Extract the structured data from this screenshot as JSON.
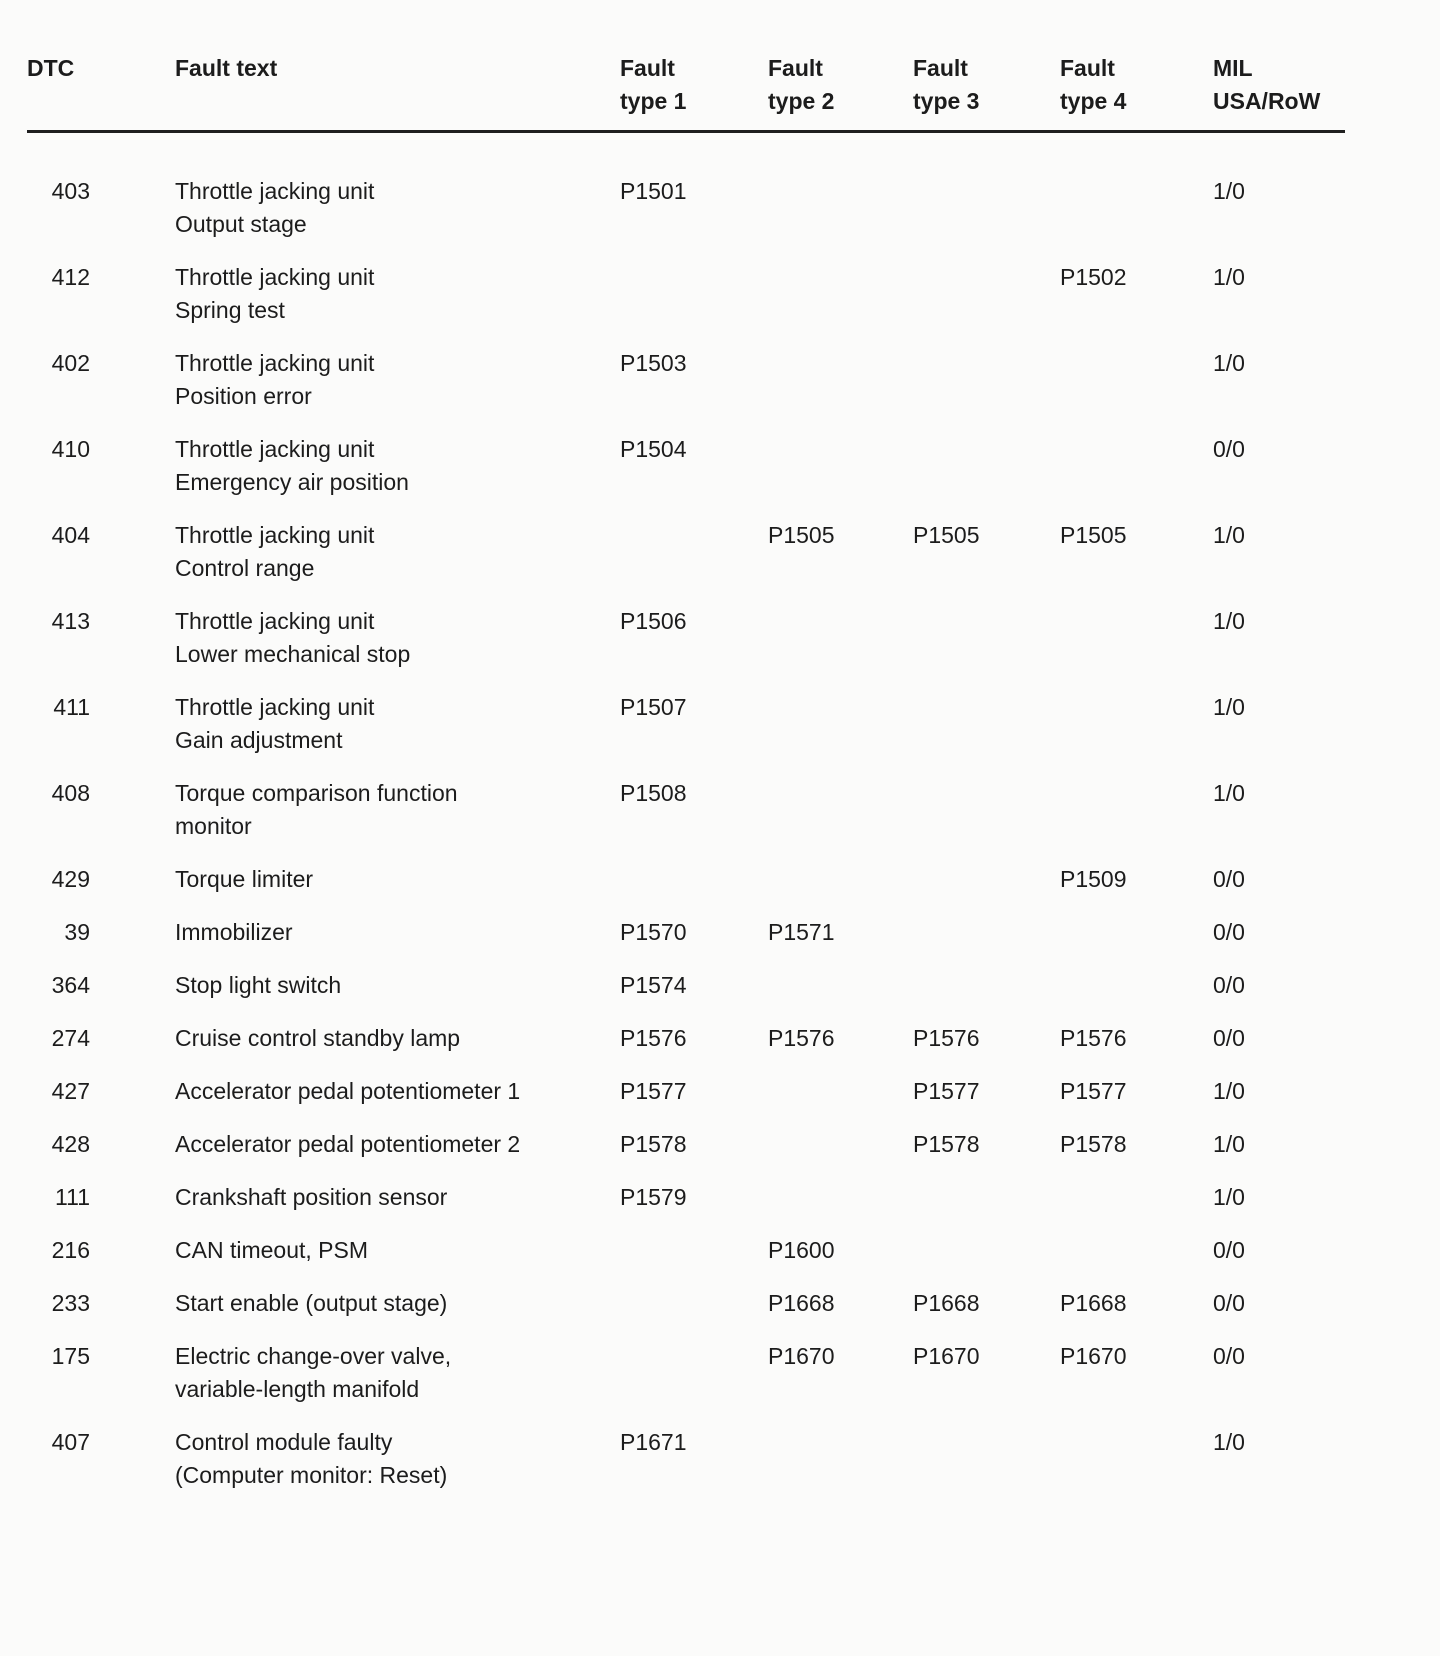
{
  "table": {
    "columns": [
      {
        "line1": "DTC",
        "line2": ""
      },
      {
        "line1": "Fault text",
        "line2": ""
      },
      {
        "line1": "Fault",
        "line2": "type 1"
      },
      {
        "line1": "Fault",
        "line2": "type 2"
      },
      {
        "line1": "Fault",
        "line2": "type 3"
      },
      {
        "line1": "Fault",
        "line2": "type 4"
      },
      {
        "line1": "MIL",
        "line2": "USA/RoW"
      }
    ],
    "rows": [
      {
        "dtc": "403",
        "fault_text": [
          "Throttle jacking unit",
          "Output stage"
        ],
        "fault_types": [
          "P1501",
          "",
          "",
          ""
        ],
        "mil": "1/0"
      },
      {
        "dtc": "412",
        "fault_text": [
          "Throttle jacking unit",
          "Spring test"
        ],
        "fault_types": [
          "",
          "",
          "",
          "P1502"
        ],
        "mil": "1/0"
      },
      {
        "dtc": "402",
        "fault_text": [
          "Throttle jacking unit",
          "Position error"
        ],
        "fault_types": [
          "P1503",
          "",
          "",
          ""
        ],
        "mil": "1/0"
      },
      {
        "dtc": "410",
        "fault_text": [
          "Throttle jacking unit",
          "Emergency air position"
        ],
        "fault_types": [
          "P1504",
          "",
          "",
          ""
        ],
        "mil": "0/0"
      },
      {
        "dtc": "404",
        "fault_text": [
          "Throttle jacking unit",
          "Control range"
        ],
        "fault_types": [
          "",
          "P1505",
          "P1505",
          "P1505"
        ],
        "mil": "1/0"
      },
      {
        "dtc": "413",
        "fault_text": [
          "Throttle jacking unit",
          "Lower mechanical stop"
        ],
        "fault_types": [
          "P1506",
          "",
          "",
          ""
        ],
        "mil": "1/0"
      },
      {
        "dtc": "411",
        "fault_text": [
          "Throttle jacking unit",
          "Gain adjustment"
        ],
        "fault_types": [
          "P1507",
          "",
          "",
          ""
        ],
        "mil": "1/0"
      },
      {
        "dtc": "408",
        "fault_text": [
          "Torque comparison function",
          "monitor"
        ],
        "fault_types": [
          "P1508",
          "",
          "",
          ""
        ],
        "mil": "1/0"
      },
      {
        "dtc": "429",
        "fault_text": [
          "Torque limiter"
        ],
        "fault_types": [
          "",
          "",
          "",
          "P1509"
        ],
        "mil": "0/0"
      },
      {
        "dtc": "39",
        "fault_text": [
          "Immobilizer"
        ],
        "fault_types": [
          "P1570",
          "P1571",
          "",
          ""
        ],
        "mil": "0/0"
      },
      {
        "dtc": "364",
        "fault_text": [
          "Stop light switch"
        ],
        "fault_types": [
          "P1574",
          "",
          "",
          ""
        ],
        "mil": "0/0"
      },
      {
        "dtc": "274",
        "fault_text": [
          "Cruise control standby lamp"
        ],
        "fault_types": [
          "P1576",
          "P1576",
          "P1576",
          "P1576"
        ],
        "mil": "0/0"
      },
      {
        "dtc": "427",
        "fault_text": [
          "Accelerator pedal potentiometer 1"
        ],
        "fault_types": [
          "P1577",
          "",
          "P1577",
          "P1577"
        ],
        "mil": "1/0"
      },
      {
        "dtc": "428",
        "fault_text": [
          "Accelerator pedal potentiometer 2"
        ],
        "fault_types": [
          "P1578",
          "",
          "P1578",
          "P1578"
        ],
        "mil": "1/0"
      },
      {
        "dtc": "111",
        "fault_text": [
          "Crankshaft position sensor"
        ],
        "fault_types": [
          "P1579",
          "",
          "",
          ""
        ],
        "mil": "1/0"
      },
      {
        "dtc": "216",
        "fault_text": [
          "CAN timeout, PSM"
        ],
        "fault_types": [
          "",
          "P1600",
          "",
          ""
        ],
        "mil": "0/0"
      },
      {
        "dtc": "233",
        "fault_text": [
          "Start enable (output stage)"
        ],
        "fault_types": [
          "",
          "P1668",
          "P1668",
          "P1668"
        ],
        "mil": "0/0"
      },
      {
        "dtc": "175",
        "fault_text": [
          "Electric change-over valve,",
          "variable-length manifold"
        ],
        "fault_types": [
          "",
          "P1670",
          "P1670",
          "P1670"
        ],
        "mil": "0/0"
      },
      {
        "dtc": "407",
        "fault_text": [
          "Control module faulty",
          "(Computer monitor: Reset)"
        ],
        "fault_types": [
          "P1671",
          "",
          "",
          ""
        ],
        "mil": "1/0"
      }
    ]
  }
}
